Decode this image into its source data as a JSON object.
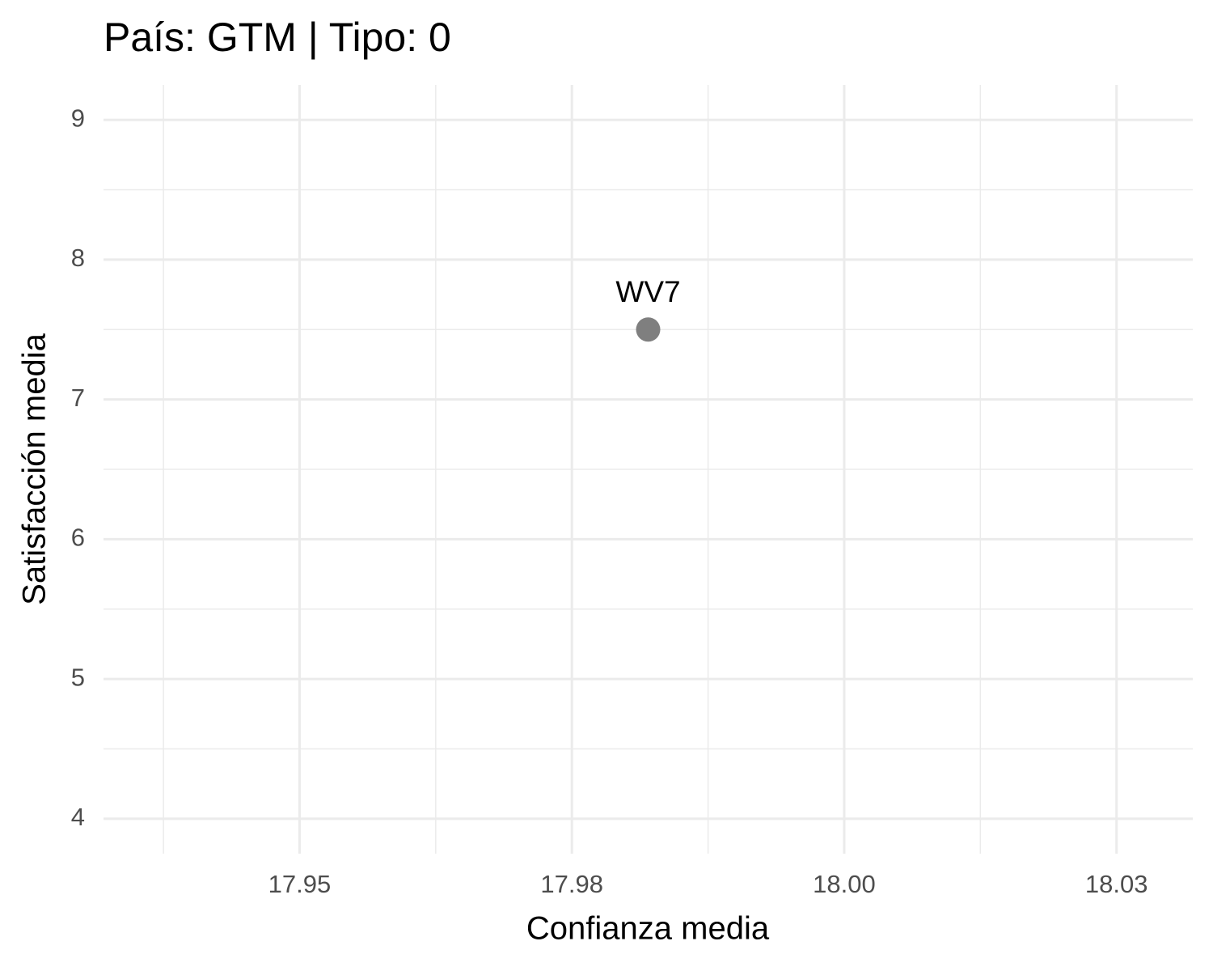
{
  "chart_data": {
    "type": "scatter",
    "title": "País: GTM | Tipo: 0",
    "x_label": "Confianza media",
    "y_label": "Satisfacción media",
    "x": [
      17.987
    ],
    "values": [
      7.5
    ],
    "point_labels": [
      "WV7"
    ],
    "color": "#7f7f7f",
    "xlim": [
      17.937,
      18.037
    ],
    "xticks": [
      {
        "value": 17.955,
        "label": "17.95"
      },
      17.98,
      {
        "value": 18.005,
        "label": "18.00"
      },
      18.03
    ],
    "ylim": [
      3.75,
      9.25
    ],
    "yticks": [
      4,
      5,
      6,
      7,
      8,
      9
    ],
    "grid": true
  }
}
